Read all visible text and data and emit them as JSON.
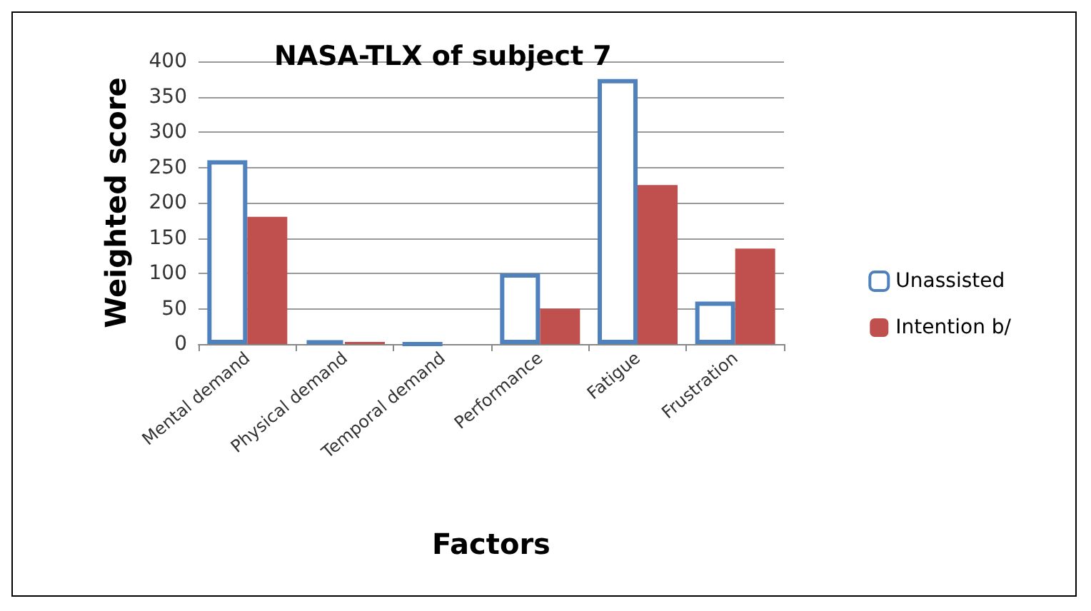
{
  "chart_data": {
    "type": "bar",
    "title": "NASA-TLX of subject 7",
    "xlabel": "Factors",
    "ylabel": "Weighted score",
    "categories": [
      "Mental demand",
      "Physical demand",
      "Temporal demand",
      "Performance",
      "Fatigue",
      "Frustration"
    ],
    "series": [
      {
        "name": "Unassisted",
        "color": "#4f81bd",
        "values": [
          260,
          5,
          0,
          100,
          375,
          60
        ]
      },
      {
        "name": "Intention b/",
        "color": "#c0504d",
        "values": [
          180,
          3,
          0,
          50,
          225,
          135
        ]
      }
    ],
    "ylim": [
      0,
      400
    ],
    "yticks": [
      0,
      50,
      100,
      150,
      200,
      250,
      300,
      350,
      400
    ],
    "grid": "y",
    "legend": "right"
  }
}
